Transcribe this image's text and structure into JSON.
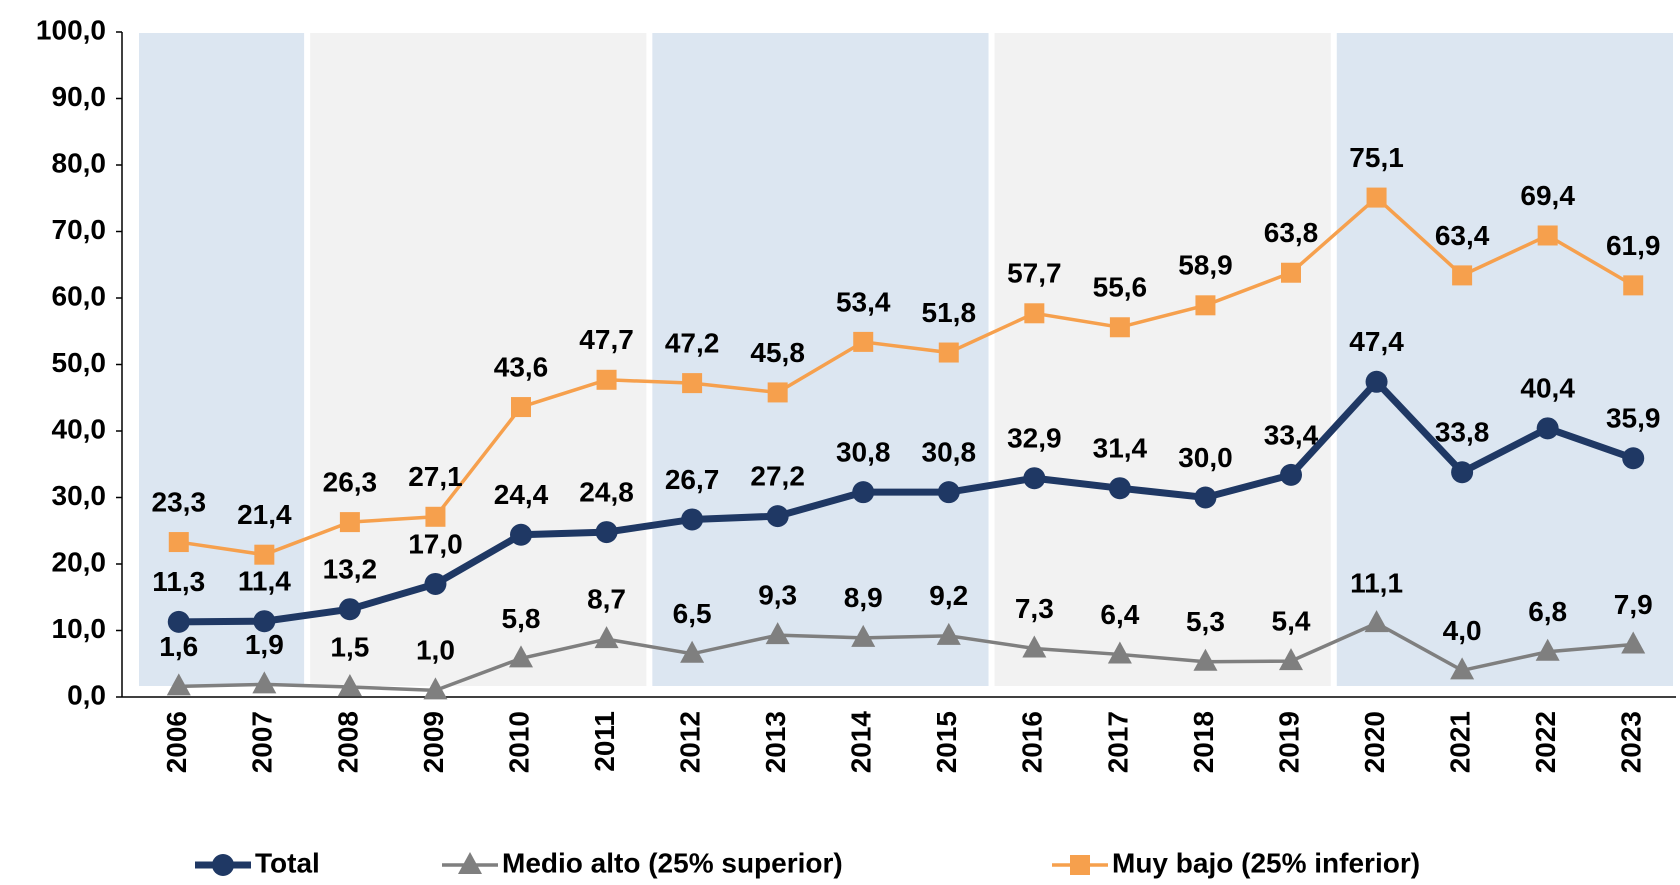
{
  "chart_data": {
    "type": "line",
    "categories": [
      "2006",
      "2007",
      "2008",
      "2009",
      "2010",
      "2011",
      "2012",
      "2013",
      "2014",
      "2015",
      "2016",
      "2017",
      "2018",
      "2019",
      "2020",
      "2021",
      "2022",
      "2023"
    ],
    "series": [
      {
        "name": "Total",
        "color": "#1f3864",
        "marker": "circle",
        "values": [
          11.3,
          11.4,
          13.2,
          17.0,
          24.4,
          24.8,
          26.7,
          27.2,
          30.8,
          30.8,
          32.9,
          31.4,
          30.0,
          33.4,
          47.4,
          33.8,
          40.4,
          35.9
        ],
        "value_labels": [
          "11,3",
          "11,4",
          "13,2",
          "17,0",
          "24,4",
          "24,8",
          "26,7",
          "27,2",
          "30,8",
          "30,8",
          "32,9",
          "31,4",
          "30,0",
          "33,4",
          "47,4",
          "33,8",
          "40,4",
          "35,9"
        ]
      },
      {
        "name": "Medio alto (25% superior)",
        "color": "#7f7f7f",
        "marker": "triangle",
        "values": [
          1.6,
          1.9,
          1.5,
          1.0,
          5.8,
          8.7,
          6.5,
          9.3,
          8.9,
          9.2,
          7.3,
          6.4,
          5.3,
          5.4,
          11.1,
          4.0,
          6.8,
          7.9
        ],
        "value_labels": [
          "1,6",
          "1,9",
          "1,5",
          "1,0",
          "5,8",
          "8,7",
          "6,5",
          "9,3",
          "8,9",
          "9,2",
          "7,3",
          "6,4",
          "5,3",
          "5,4",
          "11,1",
          "4,0",
          "6,8",
          "7,9"
        ]
      },
      {
        "name": "Muy bajo (25% inferior)",
        "color": "#f6a04d",
        "marker": "square",
        "values": [
          23.3,
          21.4,
          26.3,
          27.1,
          43.6,
          47.7,
          47.2,
          45.8,
          53.4,
          51.8,
          57.7,
          55.6,
          58.9,
          63.8,
          75.1,
          63.4,
          69.4,
          61.9
        ],
        "value_labels": [
          "23,3",
          "21,4",
          "26,3",
          "27,1",
          "43,6",
          "47,7",
          "47,2",
          "45,8",
          "53,4",
          "51,8",
          "57,7",
          "55,6",
          "58,9",
          "63,8",
          "75,1",
          "63,4",
          "69,4",
          "61,9"
        ]
      }
    ],
    "ylim": [
      0,
      100
    ],
    "yticks": [
      {
        "value": 0,
        "label": "0,0"
      },
      {
        "value": 10,
        "label": "10,0"
      },
      {
        "value": 20,
        "label": "20,0"
      },
      {
        "value": 30,
        "label": "30,0"
      },
      {
        "value": 40,
        "label": "40,0"
      },
      {
        "value": 50,
        "label": "50,0"
      },
      {
        "value": 60,
        "label": "60,0"
      },
      {
        "value": 70,
        "label": "70,0"
      },
      {
        "value": 80,
        "label": "80,0"
      },
      {
        "value": 90,
        "label": "90,0"
      },
      {
        "value": 100,
        "label": "100,0"
      }
    ],
    "legend": "bottom"
  }
}
